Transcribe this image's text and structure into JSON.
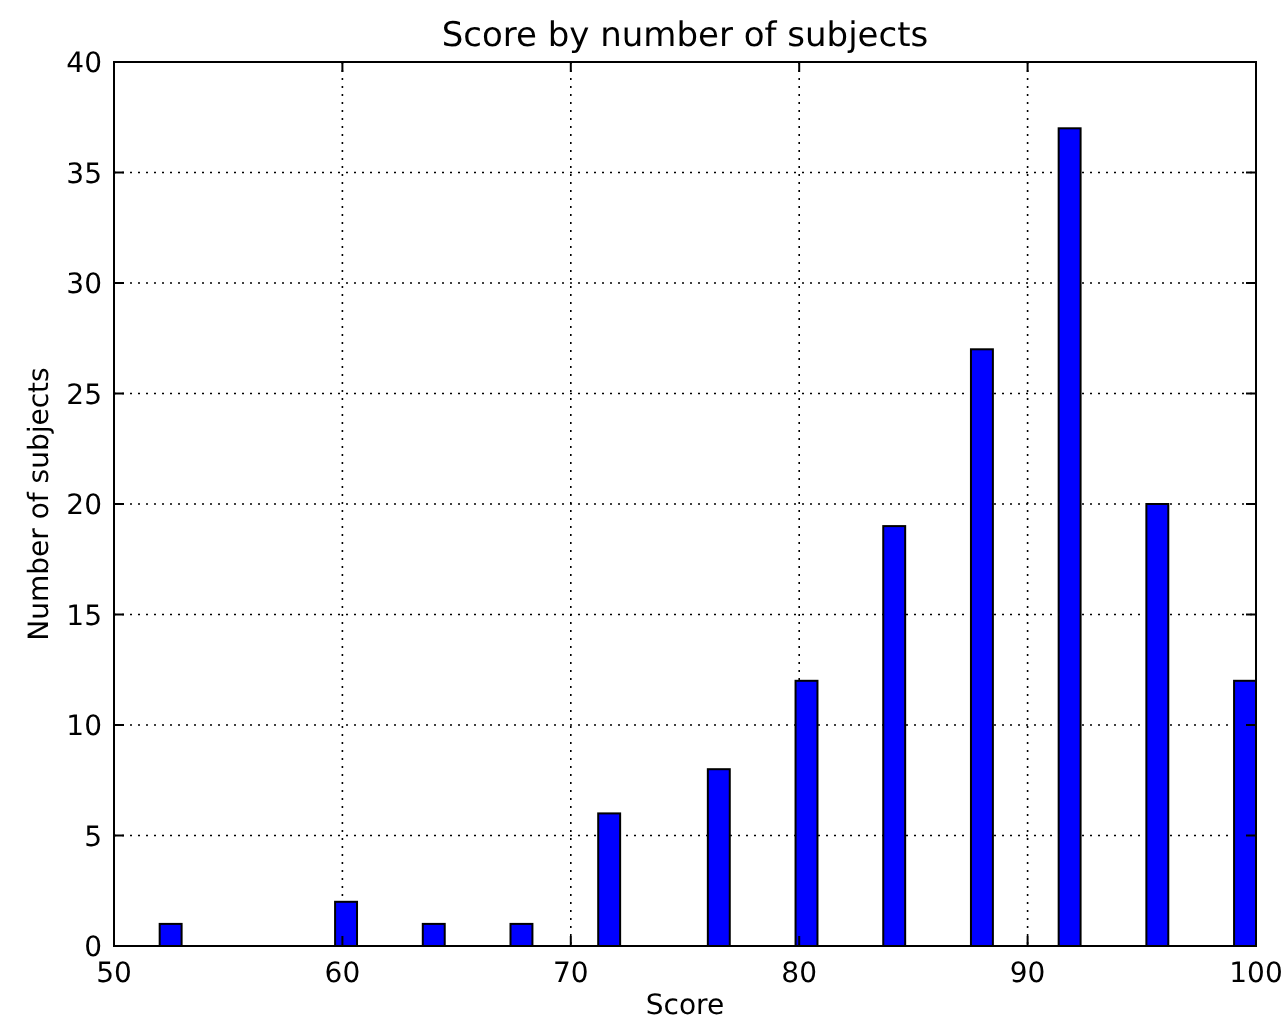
{
  "chart_data": {
    "type": "histogram",
    "title": "Score by number of subjects",
    "xlabel": "Score",
    "ylabel": "Number of subjects",
    "bins": [
      52,
      52.96,
      53.92,
      54.88,
      55.84,
      56.8,
      57.76,
      58.72,
      59.68,
      60.64,
      61.6,
      62.56,
      63.52,
      64.48,
      65.44,
      66.4,
      67.36,
      68.32,
      69.28,
      70.24,
      71.2,
      72.16,
      73.12,
      74.08,
      75.04,
      76,
      76.96,
      77.92,
      78.88,
      79.84,
      80.8,
      81.76,
      82.72,
      83.68,
      84.64,
      85.6,
      86.56,
      87.52,
      88.48,
      89.44,
      90.4,
      91.36,
      92.32,
      93.28,
      94.24,
      95.2,
      96.16,
      97.12,
      98.08,
      99.04,
      100
    ],
    "values": [
      1,
      0,
      0,
      0,
      0,
      0,
      0,
      0,
      2,
      0,
      0,
      0,
      1,
      0,
      0,
      0,
      1,
      0,
      0,
      0,
      6,
      0,
      0,
      0,
      0,
      8,
      0,
      0,
      0,
      12,
      0,
      0,
      0,
      19,
      0,
      0,
      0,
      27,
      0,
      0,
      0,
      37,
      0,
      0,
      0,
      20,
      0,
      0,
      0,
      12
    ],
    "color": "#0000ff",
    "xlim": [
      50,
      100
    ],
    "xticks": [
      50,
      60,
      70,
      80,
      90,
      100
    ],
    "ylim": [
      0,
      40
    ],
    "yticks": [
      0,
      5,
      10,
      15,
      20,
      25,
      30,
      35,
      40
    ],
    "grid": true
  }
}
